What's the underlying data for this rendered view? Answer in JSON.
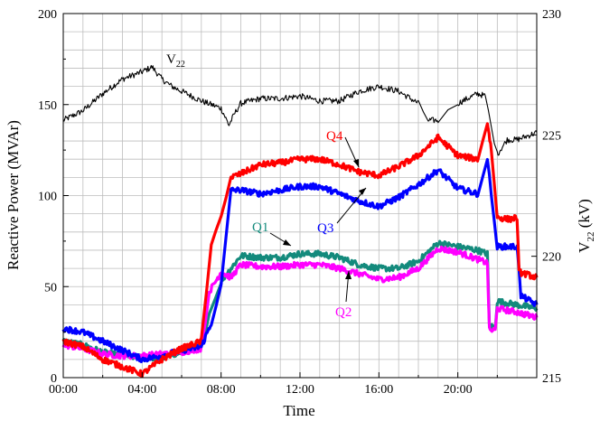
{
  "chart_data": {
    "type": "line",
    "xlabel": "Time",
    "ylabel": "Reactive Power (MVAr)",
    "y2label_main": "V",
    "y2label_sub": "22",
    "y2label_unit": " (kV)",
    "x_ticks": [
      "00:00",
      "04:00",
      "08:00",
      "12:00",
      "16:00",
      "20:00"
    ],
    "x_tick_hours": [
      0,
      4,
      8,
      12,
      16,
      20
    ],
    "xlim": [
      0,
      24
    ],
    "ylim": [
      0,
      200
    ],
    "y_ticks": [
      0,
      50,
      100,
      150,
      200
    ],
    "y2lim": [
      215,
      230
    ],
    "y2_ticks": [
      215,
      220,
      225,
      230
    ],
    "grid": true,
    "annotations": {
      "v22_main": "V",
      "v22_sub": "22",
      "q1": "Q1",
      "q2": "Q2",
      "q3": "Q3",
      "q4": "Q4"
    },
    "colors": {
      "V22": "#000000",
      "Q1": "#138a7c",
      "Q2": "#ff00ff",
      "Q3": "#0000ff",
      "Q4": "#ff0000"
    },
    "series": [
      {
        "name": "V22",
        "axis": "right",
        "x": [
          0,
          1,
          2,
          3,
          4,
          4.5,
          5,
          5.5,
          6,
          7,
          8,
          8.4,
          8.7,
          9,
          10,
          11,
          12,
          13,
          14,
          15,
          16,
          17,
          18,
          18.5,
          19,
          20,
          21,
          21.4,
          21.7,
          22,
          22.5,
          23,
          24
        ],
        "y": [
          225.6,
          226.0,
          226.7,
          227.3,
          227.6,
          227.8,
          227.3,
          227.0,
          226.8,
          226.4,
          226.1,
          225.4,
          225.9,
          226.3,
          226.5,
          226.5,
          226.6,
          226.4,
          226.4,
          226.8,
          227.0,
          226.8,
          226.3,
          225.6,
          225.6,
          226.3,
          226.7,
          226.6,
          225.3,
          224.2,
          224.8,
          224.8,
          225.1
        ]
      },
      {
        "name": "Q1",
        "axis": "left",
        "x": [
          0,
          1,
          2,
          3,
          4,
          5,
          6,
          7,
          7.4,
          8,
          8.5,
          9,
          10,
          11,
          12,
          13,
          14,
          15,
          16,
          17,
          18,
          19,
          20,
          21,
          21.5,
          21.6,
          21.9,
          22,
          23,
          24
        ],
        "y": [
          20,
          18,
          14,
          12,
          11,
          11,
          14,
          17,
          35,
          53,
          60,
          67,
          66,
          66,
          68,
          68,
          66,
          62,
          60,
          60,
          64,
          74,
          72,
          70,
          68,
          28,
          28,
          42,
          40,
          38
        ]
      },
      {
        "name": "Q2",
        "axis": "left",
        "x": [
          0,
          1,
          2,
          3,
          4,
          5,
          6,
          7,
          7.4,
          8,
          8.5,
          9,
          10,
          11,
          12,
          13,
          14,
          15,
          16,
          17,
          18,
          19,
          20,
          21,
          21.5,
          21.6,
          21.9,
          22,
          23,
          24
        ],
        "y": [
          18,
          16,
          13,
          12,
          12,
          13,
          14,
          16,
          47,
          58,
          55,
          62,
          61,
          61,
          62,
          62,
          60,
          57,
          54,
          55,
          60,
          71,
          69,
          65,
          63,
          26,
          26,
          38,
          36,
          33
        ]
      },
      {
        "name": "Q3",
        "axis": "left",
        "x": [
          0,
          1,
          2,
          3,
          4,
          5,
          6,
          7,
          7.5,
          8,
          8.5,
          9,
          10,
          11,
          12,
          13,
          14,
          15,
          16,
          17,
          18,
          19,
          20,
          21,
          21.5,
          21.7,
          22,
          22.3,
          23,
          23.2,
          24
        ],
        "y": [
          27,
          25,
          20,
          15,
          10,
          12,
          15,
          17,
          30,
          50,
          103,
          103,
          101,
          103,
          105,
          105,
          101,
          97,
          94,
          99,
          106,
          114,
          104,
          101,
          120,
          100,
          72,
          72,
          72,
          45,
          40
        ]
      },
      {
        "name": "Q4",
        "axis": "left",
        "x": [
          0,
          1,
          2,
          3,
          4,
          5,
          6,
          6.5,
          7,
          7.5,
          8,
          8.5,
          9,
          10,
          11,
          12,
          13,
          14,
          15,
          16,
          17,
          18,
          19,
          20,
          21,
          21.5,
          21.7,
          22,
          22.6,
          23,
          23.1,
          24
        ],
        "y": [
          20,
          17,
          10,
          6,
          2,
          10,
          16,
          18,
          20,
          72,
          90,
          110,
          112,
          117,
          118,
          120,
          120,
          117,
          113,
          111,
          116,
          122,
          132,
          122,
          120,
          140,
          125,
          88,
          87,
          88,
          58,
          55
        ]
      }
    ]
  }
}
